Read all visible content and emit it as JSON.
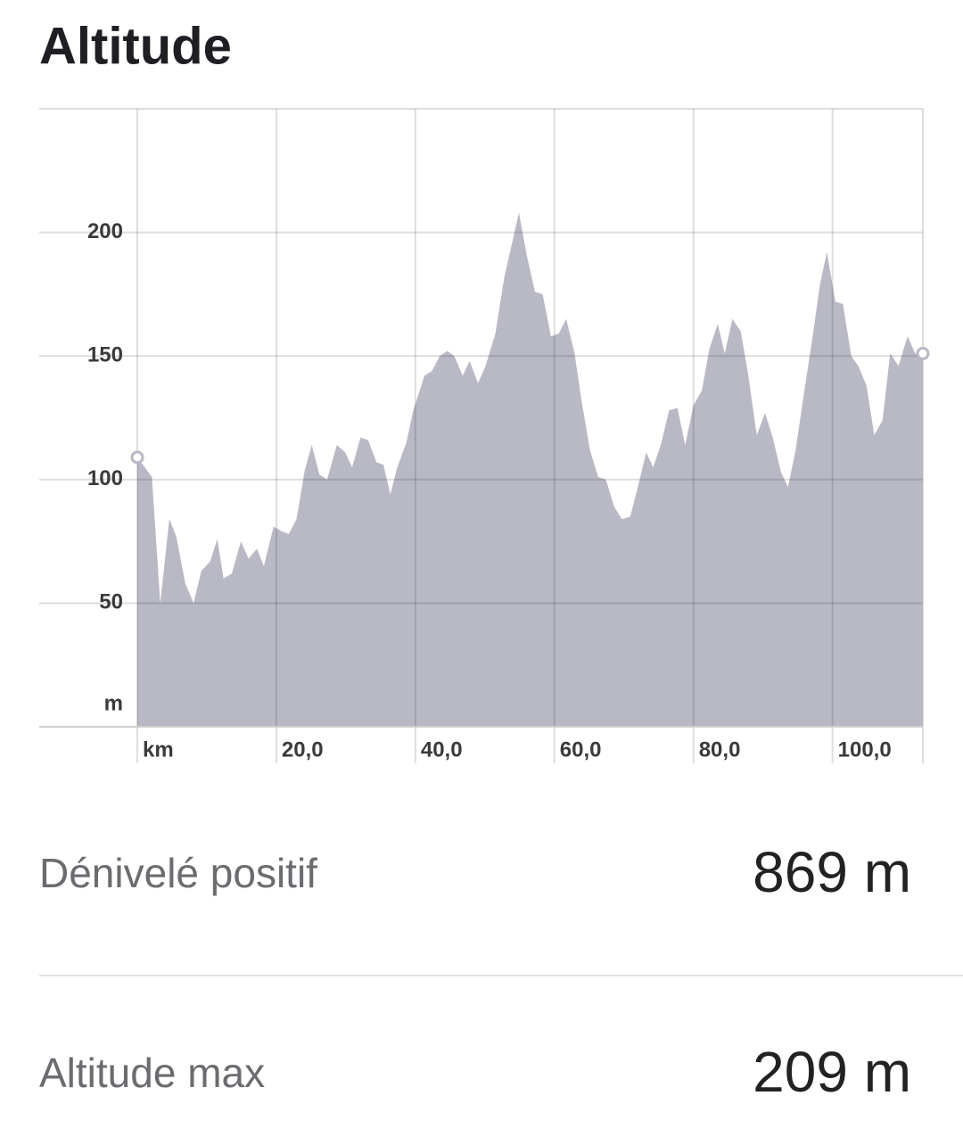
{
  "title": "Altitude",
  "chart_data": {
    "type": "area",
    "x_unit": "km",
    "y_unit": "m",
    "color": "#b9b9c6",
    "x": [
      0,
      0.8,
      2.1,
      3.3,
      4.6,
      5.6,
      6.9,
      8.1,
      9.2,
      10.5,
      11.5,
      12.4,
      13.6,
      14.9,
      16,
      17.2,
      18.2,
      19.6,
      20.8,
      21.8,
      22.9,
      24.1,
      25.1,
      26.2,
      27.3,
      28.7,
      29.9,
      30.9,
      32.1,
      33.2,
      34.4,
      35.4,
      36.4,
      37.4,
      38.7,
      39.7,
      41.3,
      42.4,
      43.5,
      44.6,
      45.6,
      46.8,
      47.8,
      49,
      50.1,
      51.5,
      52.8,
      54.9,
      56,
      57.2,
      58.3,
      59.5,
      60.6,
      61.7,
      62.9,
      63.9,
      65.1,
      66.3,
      67.4,
      68.6,
      69.7,
      70.9,
      72,
      73.2,
      74.2,
      75.3,
      76.5,
      77.7,
      78.8,
      80,
      81.2,
      82.3,
      83.5,
      84.5,
      85.6,
      86.8,
      87.9,
      89.1,
      90.3,
      91.4,
      92.6,
      93.6,
      94.7,
      95.9,
      97.1,
      98.2,
      99.2,
      100.4,
      101.5,
      102.7,
      103.7,
      104.9,
      106,
      107.2,
      108.3,
      109.5,
      110.8,
      111.9,
      113
    ],
    "values": [
      109,
      106,
      101,
      50,
      84,
      77,
      58,
      50,
      63,
      67,
      76,
      60,
      62,
      75,
      68,
      72,
      65,
      81,
      79,
      78,
      84,
      104,
      114,
      102,
      100,
      114,
      111,
      105,
      117,
      116,
      107,
      106,
      94,
      105,
      115,
      128,
      142,
      144,
      150,
      152,
      150,
      142,
      148,
      139,
      146,
      159,
      182,
      208,
      191,
      176,
      175,
      158,
      159,
      165,
      151,
      132,
      112,
      101,
      100,
      89,
      84,
      85,
      97,
      111,
      105,
      114,
      128,
      129,
      114,
      130,
      136,
      153,
      163,
      151,
      165,
      160,
      142,
      118,
      127,
      117,
      103,
      97,
      112,
      135,
      157,
      179,
      192,
      172,
      171,
      150,
      146,
      138,
      118,
      124,
      151,
      146,
      158,
      151,
      151
    ],
    "xlim": [
      0,
      113
    ],
    "ylim": [
      0,
      250
    ],
    "xticks": [
      {
        "value": 0,
        "label": "km"
      },
      {
        "value": 20,
        "label": "20,0"
      },
      {
        "value": 40,
        "label": "40,0"
      },
      {
        "value": 60,
        "label": "60,0"
      },
      {
        "value": 80,
        "label": "80,0"
      },
      {
        "value": 100,
        "label": "100,0"
      }
    ],
    "yticks": [
      50,
      100,
      150,
      200
    ],
    "grid": true
  },
  "stats": [
    {
      "label": "Dénivelé positif",
      "value": "869 m"
    },
    {
      "label": "Altitude max",
      "value": "209 m"
    }
  ]
}
